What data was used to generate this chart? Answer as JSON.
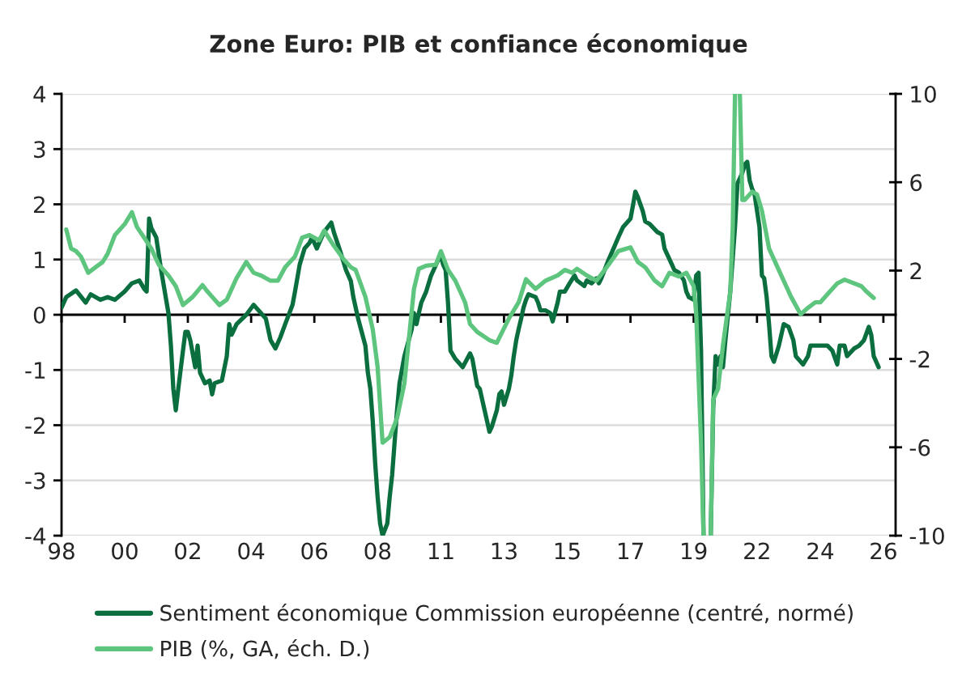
{
  "chart_data": {
    "type": "line",
    "title": "Zone Euro: PIB et confiance économique",
    "series": [
      {
        "name": "Sentiment économique Commission européenne (centré, normé)",
        "color": "#0b6e3f",
        "x": [
          "1998-02",
          "1998-04",
          "1998-08",
          "1998-12",
          "1999-02",
          "1999-06",
          "1999-09",
          "1999-12",
          "2000-04",
          "2000-07",
          "2000-10",
          "2000-12",
          "2001-01",
          "2001-02",
          "2001-03",
          "2001-05",
          "2001-07",
          "2001-10",
          "2001-11",
          "2001-12",
          "2002-01",
          "2002-02",
          "2002-04",
          "2002-05",
          "2002-06",
          "2002-07",
          "2002-09",
          "2002-10",
          "2002-11",
          "2003-01",
          "2003-03",
          "2003-04",
          "2003-05",
          "2003-08",
          "2003-10",
          "2003-11",
          "2003-12",
          "2004-02",
          "2004-06",
          "2004-09",
          "2004-11",
          "2005-02",
          "2005-04",
          "2005-06",
          "2005-08",
          "2005-10",
          "2006-01",
          "2006-02",
          "2006-04",
          "2006-06",
          "2006-08",
          "2006-09",
          "2006-11",
          "2006-12",
          "2007-02",
          "2007-05",
          "2007-06",
          "2007-09",
          "2007-11",
          "2008-01",
          "2008-02",
          "2008-04",
          "2008-07",
          "2008-08",
          "2008-09",
          "2008-10",
          "2008-11",
          "2008-12",
          "2009-01",
          "2009-02",
          "2009-04",
          "2009-05",
          "2009-06",
          "2009-07",
          "2009-08",
          "2009-09",
          "2009-11",
          "2010-02",
          "2010-03",
          "2010-04",
          "2010-05",
          "2010-06",
          "2010-08",
          "2010-10",
          "2011-01",
          "2011-02",
          "2011-03",
          "2011-04",
          "2011-05",
          "2011-06",
          "2011-08",
          "2011-11",
          "2012-02",
          "2012-03",
          "2012-04",
          "2012-05",
          "2012-06",
          "2012-08",
          "2012-10",
          "2012-11",
          "2013-01",
          "2013-02",
          "2013-03",
          "2013-04",
          "2013-06",
          "2013-07",
          "2013-08",
          "2013-09",
          "2013-10",
          "2013-11",
          "2013-12",
          "2014-01",
          "2014-02",
          "2014-05",
          "2014-06",
          "2014-07",
          "2014-09",
          "2014-11",
          "2014-12",
          "2015-02",
          "2015-03",
          "2015-05",
          "2015-07",
          "2015-09",
          "2015-10",
          "2016-01",
          "2016-02",
          "2016-04",
          "2016-06",
          "2016-07",
          "2016-08",
          "2016-11",
          "2017-01",
          "2017-03",
          "2017-05",
          "2017-08",
          "2017-09",
          "2017-10",
          "2017-11",
          "2018-01",
          "2018-02",
          "2018-04",
          "2018-07",
          "2018-09",
          "2018-10",
          "2018-11",
          "2019-01",
          "2019-02",
          "2019-04",
          "2019-06",
          "2019-07",
          "2019-08",
          "2019-10",
          "2019-11",
          "2019-12",
          "2020-01",
          "2020-02",
          "2020-03",
          "2020-04",
          "2020-05",
          "2020-06",
          "2020-07",
          "2020-08",
          "2020-09",
          "2020-10",
          "2020-11",
          "2021-01",
          "2021-03",
          "2021-04",
          "2021-05",
          "2021-06",
          "2021-07",
          "2021-08",
          "2021-09",
          "2021-10",
          "2021-11",
          "2022-01",
          "2022-02",
          "2022-03",
          "2022-04",
          "2022-05",
          "2022-06",
          "2022-07",
          "2022-09",
          "2022-11",
          "2023-01",
          "2023-03",
          "2023-04",
          "2023-06",
          "2023-07",
          "2023-09",
          "2023-10",
          "2023-12",
          "2024-02",
          "2024-05",
          "2024-07",
          "2024-09",
          "2024-10",
          "2024-12",
          "2025-01",
          "2025-04",
          "2025-06",
          "2025-08",
          "2025-10",
          "2025-11",
          "2025-12",
          "2026-02"
        ],
        "values": [
          0.13,
          0.32,
          0.44,
          0.22,
          0.37,
          0.27,
          0.32,
          0.27,
          0.42,
          0.57,
          0.62,
          0.47,
          0.42,
          1.74,
          1.57,
          1.4,
          0.81,
          0.03,
          -0.56,
          -1.34,
          -1.73,
          -1.34,
          -0.65,
          -0.31,
          -0.31,
          -0.46,
          -0.95,
          -0.56,
          -1.05,
          -1.24,
          -1.19,
          -1.44,
          -1.24,
          -1.19,
          -0.75,
          -0.17,
          -0.36,
          -0.17,
          0.0,
          0.18,
          0.08,
          -0.07,
          -0.46,
          -0.61,
          -0.41,
          -0.17,
          0.18,
          0.42,
          0.91,
          1.2,
          1.3,
          1.4,
          1.2,
          1.3,
          1.5,
          1.67,
          1.5,
          1.1,
          0.81,
          0.61,
          0.32,
          -0.07,
          -0.56,
          -1.05,
          -1.34,
          -1.93,
          -2.7,
          -3.3,
          -3.78,
          -4.0,
          -3.78,
          -3.3,
          -2.9,
          -2.32,
          -1.73,
          -1.24,
          -0.75,
          -0.26,
          0.03,
          -0.17,
          0.03,
          0.22,
          0.42,
          0.71,
          1.0,
          1.06,
          0.91,
          0.81,
          0.22,
          -0.65,
          -0.8,
          -0.95,
          -0.7,
          -0.8,
          -1.05,
          -1.29,
          -1.34,
          -1.73,
          -2.12,
          -2.02,
          -1.73,
          -1.44,
          -1.39,
          -1.63,
          -1.34,
          -1.1,
          -0.75,
          -0.46,
          -0.26,
          -0.07,
          0.13,
          0.27,
          0.37,
          0.32,
          0.22,
          0.08,
          0.08,
          0.03,
          -0.12,
          0.22,
          0.42,
          0.42,
          0.57,
          0.71,
          0.62,
          0.52,
          0.62,
          0.57,
          0.66,
          0.57,
          0.66,
          1.0,
          1.2,
          1.4,
          1.59,
          1.74,
          1.98,
          2.23,
          2.13,
          1.88,
          1.69,
          1.64,
          1.5,
          1.45,
          1.2,
          1.1,
          0.91,
          0.81,
          0.76,
          0.62,
          0.42,
          0.32,
          0.27,
          0.71,
          0.76,
          -0.65,
          -4.0,
          null,
          null,
          -4.0,
          -1.7,
          -0.75,
          -0.9,
          -0.75,
          -0.95,
          -0.46,
          0.42,
          1.59,
          2.38,
          2.47,
          2.57,
          2.72,
          2.77,
          2.43,
          2.28,
          2.18,
          1.59,
          0.71,
          0.66,
          0.32,
          -0.17,
          -0.75,
          -0.85,
          -0.56,
          -0.17,
          -0.22,
          -0.46,
          -0.75,
          -0.85,
          -0.9,
          -0.75,
          -0.56,
          -0.56,
          -0.56,
          -0.56,
          -0.65,
          -0.9,
          -0.56,
          -0.56,
          -0.75,
          -0.61,
          -0.56,
          -0.46,
          -0.22,
          -0.37,
          -0.75,
          -0.95
        ]
      },
      {
        "name": "PIB (%, GA, éch. D.)",
        "color": "#5ec57e",
        "axis": "y2",
        "x": [
          "1998-04",
          "1998-06",
          "1998-08",
          "1998-10",
          "1999-01",
          "1999-04",
          "1999-07",
          "1999-09",
          "1999-12",
          "2000-04",
          "2000-07",
          "2000-09",
          "2000-12",
          "2001-03",
          "2001-06",
          "2001-10",
          "2002-01",
          "2002-04",
          "2002-08",
          "2002-12",
          "2003-02",
          "2003-07",
          "2003-10",
          "2004-02",
          "2004-06",
          "2004-09",
          "2004-12",
          "2005-04",
          "2005-07",
          "2005-10",
          "2006-02",
          "2006-05",
          "2006-08",
          "2006-12",
          "2007-02",
          "2007-06",
          "2007-10",
          "2008-01",
          "2008-03",
          "2008-07",
          "2008-10",
          "2008-12",
          "2009-02",
          "2009-05",
          "2009-08",
          "2009-11",
          "2010-03",
          "2010-05",
          "2010-08",
          "2010-12",
          "2011-02",
          "2011-05",
          "2011-08",
          "2011-12",
          "2012-02",
          "2012-05",
          "2012-10",
          "2013-01",
          "2013-06",
          "2013-10",
          "2014-01",
          "2014-05",
          "2014-09",
          "2015-02",
          "2015-05",
          "2015-08",
          "2015-10",
          "2016-02",
          "2016-06",
          "2016-11",
          "2017-03",
          "2017-08",
          "2017-11",
          "2018-02",
          "2018-06",
          "2018-09",
          "2018-12",
          "2019-04",
          "2019-07",
          "2019-10",
          "2019-11",
          "2020-01",
          "2020-02",
          "2020-03",
          "2020-04",
          "2020-05",
          "2020-06",
          "2020-08",
          "2020-10",
          "2021-01",
          "2021-02",
          "2021-03",
          "2021-04",
          "2021-05",
          "2021-06",
          "2021-07",
          "2021-10",
          "2021-12",
          "2022-02",
          "2022-05",
          "2022-10",
          "2023-02",
          "2023-06",
          "2023-09",
          "2023-12",
          "2024-02",
          "2024-06",
          "2024-09",
          "2024-12",
          "2025-04",
          "2025-07",
          "2025-09",
          "2025-12"
        ],
        "values": [
          3.86,
          3.0,
          2.88,
          2.64,
          1.9,
          2.15,
          2.39,
          2.76,
          3.61,
          4.1,
          4.64,
          3.98,
          3.49,
          3.0,
          2.27,
          1.78,
          1.29,
          0.44,
          0.81,
          1.34,
          1.05,
          0.44,
          0.68,
          1.66,
          2.39,
          1.9,
          1.78,
          1.54,
          1.54,
          2.15,
          2.64,
          3.49,
          3.61,
          3.37,
          3.81,
          3.13,
          2.52,
          2.15,
          2.03,
          0.81,
          -0.66,
          -2.37,
          -5.79,
          -5.54,
          -4.69,
          -3.1,
          1.17,
          2.08,
          2.22,
          2.27,
          2.88,
          2.03,
          1.54,
          0.56,
          -0.42,
          -0.78,
          -1.15,
          -1.27,
          -0.17,
          0.56,
          1.61,
          1.17,
          1.54,
          1.78,
          2.03,
          1.9,
          2.08,
          1.78,
          1.54,
          2.27,
          2.88,
          3.05,
          2.39,
          2.15,
          1.54,
          1.29,
          1.9,
          1.73,
          1.9,
          1.29,
          0.07,
          -5.79,
          -10,
          null,
          null,
          -10,
          -3.83,
          -3.35,
          -1.39,
          1.05,
          3.98,
          10,
          null,
          10,
          5.2,
          5.2,
          5.57,
          5.45,
          4.71,
          3.0,
          1.78,
          0.81,
          0.02,
          0.32,
          0.56,
          0.56,
          1.05,
          1.42,
          1.59,
          1.42,
          1.29,
          1.05,
          0.76
        ]
      }
    ],
    "xlim": [
      "1998-02",
      "2026-09"
    ],
    "xticks": [
      {
        "value": "1998-02",
        "label": "98"
      },
      {
        "value": "2000-04",
        "label": "00"
      },
      {
        "value": "2002-06",
        "label": "02"
      },
      {
        "value": "2004-08",
        "label": "04"
      },
      {
        "value": "2006-10",
        "label": "06"
      },
      {
        "value": "2008-12",
        "label": "08"
      },
      {
        "value": "2011-02",
        "label": "11"
      },
      {
        "value": "2013-04",
        "label": "13"
      },
      {
        "value": "2015-06",
        "label": "15"
      },
      {
        "value": "2017-08",
        "label": "17"
      },
      {
        "value": "2019-10",
        "label": "19"
      },
      {
        "value": "2021-12",
        "label": "22"
      },
      {
        "value": "2024-02",
        "label": "24"
      },
      {
        "value": "2026-04",
        "label": "26"
      }
    ],
    "ylim": [
      -4,
      4
    ],
    "yticks": [
      -4,
      -3,
      -2,
      -1,
      0,
      1,
      2,
      3,
      4
    ],
    "y2lim": [
      -10,
      10
    ],
    "y2ticks": [
      -10,
      -6,
      -2,
      2,
      6,
      10
    ],
    "grid": "y",
    "legend": "bottom"
  }
}
